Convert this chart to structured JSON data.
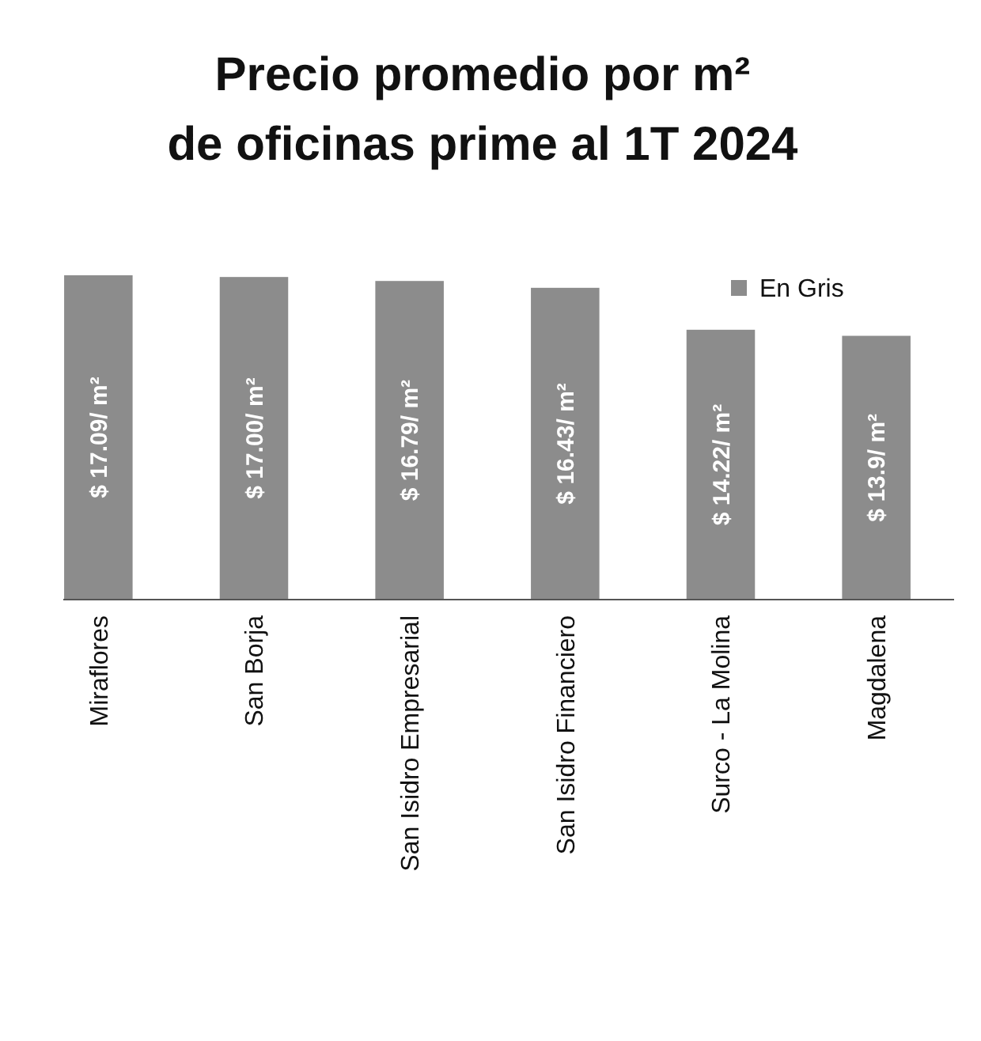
{
  "chart_data": {
    "type": "bar",
    "title": "Precio promedio por m²\nde oficinas prime al 1T 2024",
    "categories": [
      "Miraflores",
      "San Borja",
      "San Isidro Empresarial",
      "San Isidro Financiero",
      "Surco - La Molina",
      "Magdalena"
    ],
    "series": [
      {
        "name": "En Gris",
        "color": "#8c8c8c",
        "values": [
          17.09,
          17.0,
          16.79,
          16.43,
          14.22,
          13.9
        ],
        "value_labels": [
          "$ 17.09/ m²",
          "$ 17.00/ m²",
          "$ 16.79/ m²",
          "$ 16.43/ m²",
          "$ 14.22/ m²",
          "$ 13.9/ m²"
        ]
      }
    ],
    "legend": "top right"
  }
}
